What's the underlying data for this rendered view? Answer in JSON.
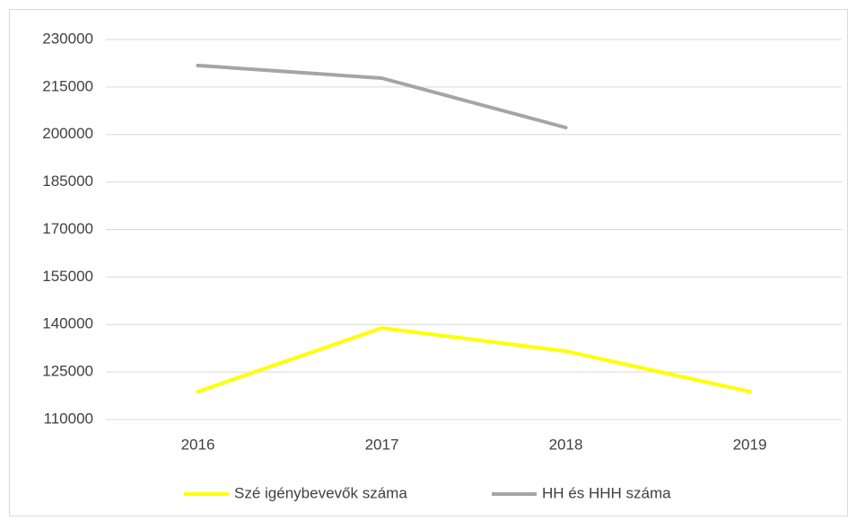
{
  "chart_data": {
    "type": "line",
    "categories": [
      "2016",
      "2017",
      "2018",
      "2019"
    ],
    "series": [
      {
        "name": "Szé igénybevevők száma",
        "color": "#ffff00",
        "values": [
          118800,
          138900,
          131600,
          118800
        ]
      },
      {
        "name": "HH és HHH száma",
        "color": "#a5a5a5",
        "values": [
          221800,
          217800,
          202200,
          null
        ]
      }
    ],
    "ylim": [
      110000,
      230000
    ],
    "yticks": [
      110000,
      125000,
      140000,
      155000,
      170000,
      185000,
      200000,
      215000,
      230000
    ],
    "grid": true,
    "legend": "bottom"
  }
}
